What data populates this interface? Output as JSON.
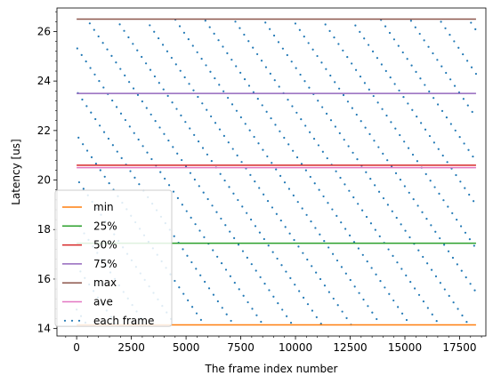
{
  "chart_data": {
    "type": "scatter",
    "xlabel": "The frame index number",
    "ylabel": "Latency [us]",
    "xlim": [
      -900,
      18700
    ],
    "ylim": [
      13.7,
      26.95
    ],
    "x_ticks": [
      0,
      2500,
      5000,
      7500,
      10000,
      12500,
      15000,
      17500
    ],
    "x_tick_labels": [
      "0",
      "2500",
      "5000",
      "7500",
      "10000",
      "12500",
      "15000",
      "17500"
    ],
    "y_ticks": [
      14,
      16,
      18,
      20,
      22,
      24,
      26
    ],
    "y_tick_labels": [
      "14",
      "16",
      "18",
      "20",
      "22",
      "24",
      "26"
    ],
    "legend_position": "lower-left",
    "horizontal_lines": [
      {
        "name": "min",
        "value": 14.15,
        "x_range": [
          0,
          18250
        ],
        "color": "#ff7f0e"
      },
      {
        "name": "25%",
        "value": 17.45,
        "x_range": [
          0,
          18250
        ],
        "color": "#2ca02c"
      },
      {
        "name": "50%",
        "value": 20.6,
        "x_range": [
          0,
          18250
        ],
        "color": "#d62728"
      },
      {
        "name": "75%",
        "value": 23.5,
        "x_range": [
          0,
          18250
        ],
        "color": "#9467bd"
      },
      {
        "name": "max",
        "value": 26.5,
        "x_range": [
          0,
          18250
        ],
        "color": "#8c564b"
      },
      {
        "name": "ave",
        "value": 20.5,
        "x_range": [
          0,
          18250
        ],
        "color": "#e377c2"
      }
    ],
    "scatter": {
      "name": "each frame",
      "color": "#1f77b4",
      "x_range": [
        0,
        18250
      ],
      "y_range": [
        14.15,
        26.5
      ],
      "count": 18250,
      "drawn_sample_count": 640
    }
  }
}
